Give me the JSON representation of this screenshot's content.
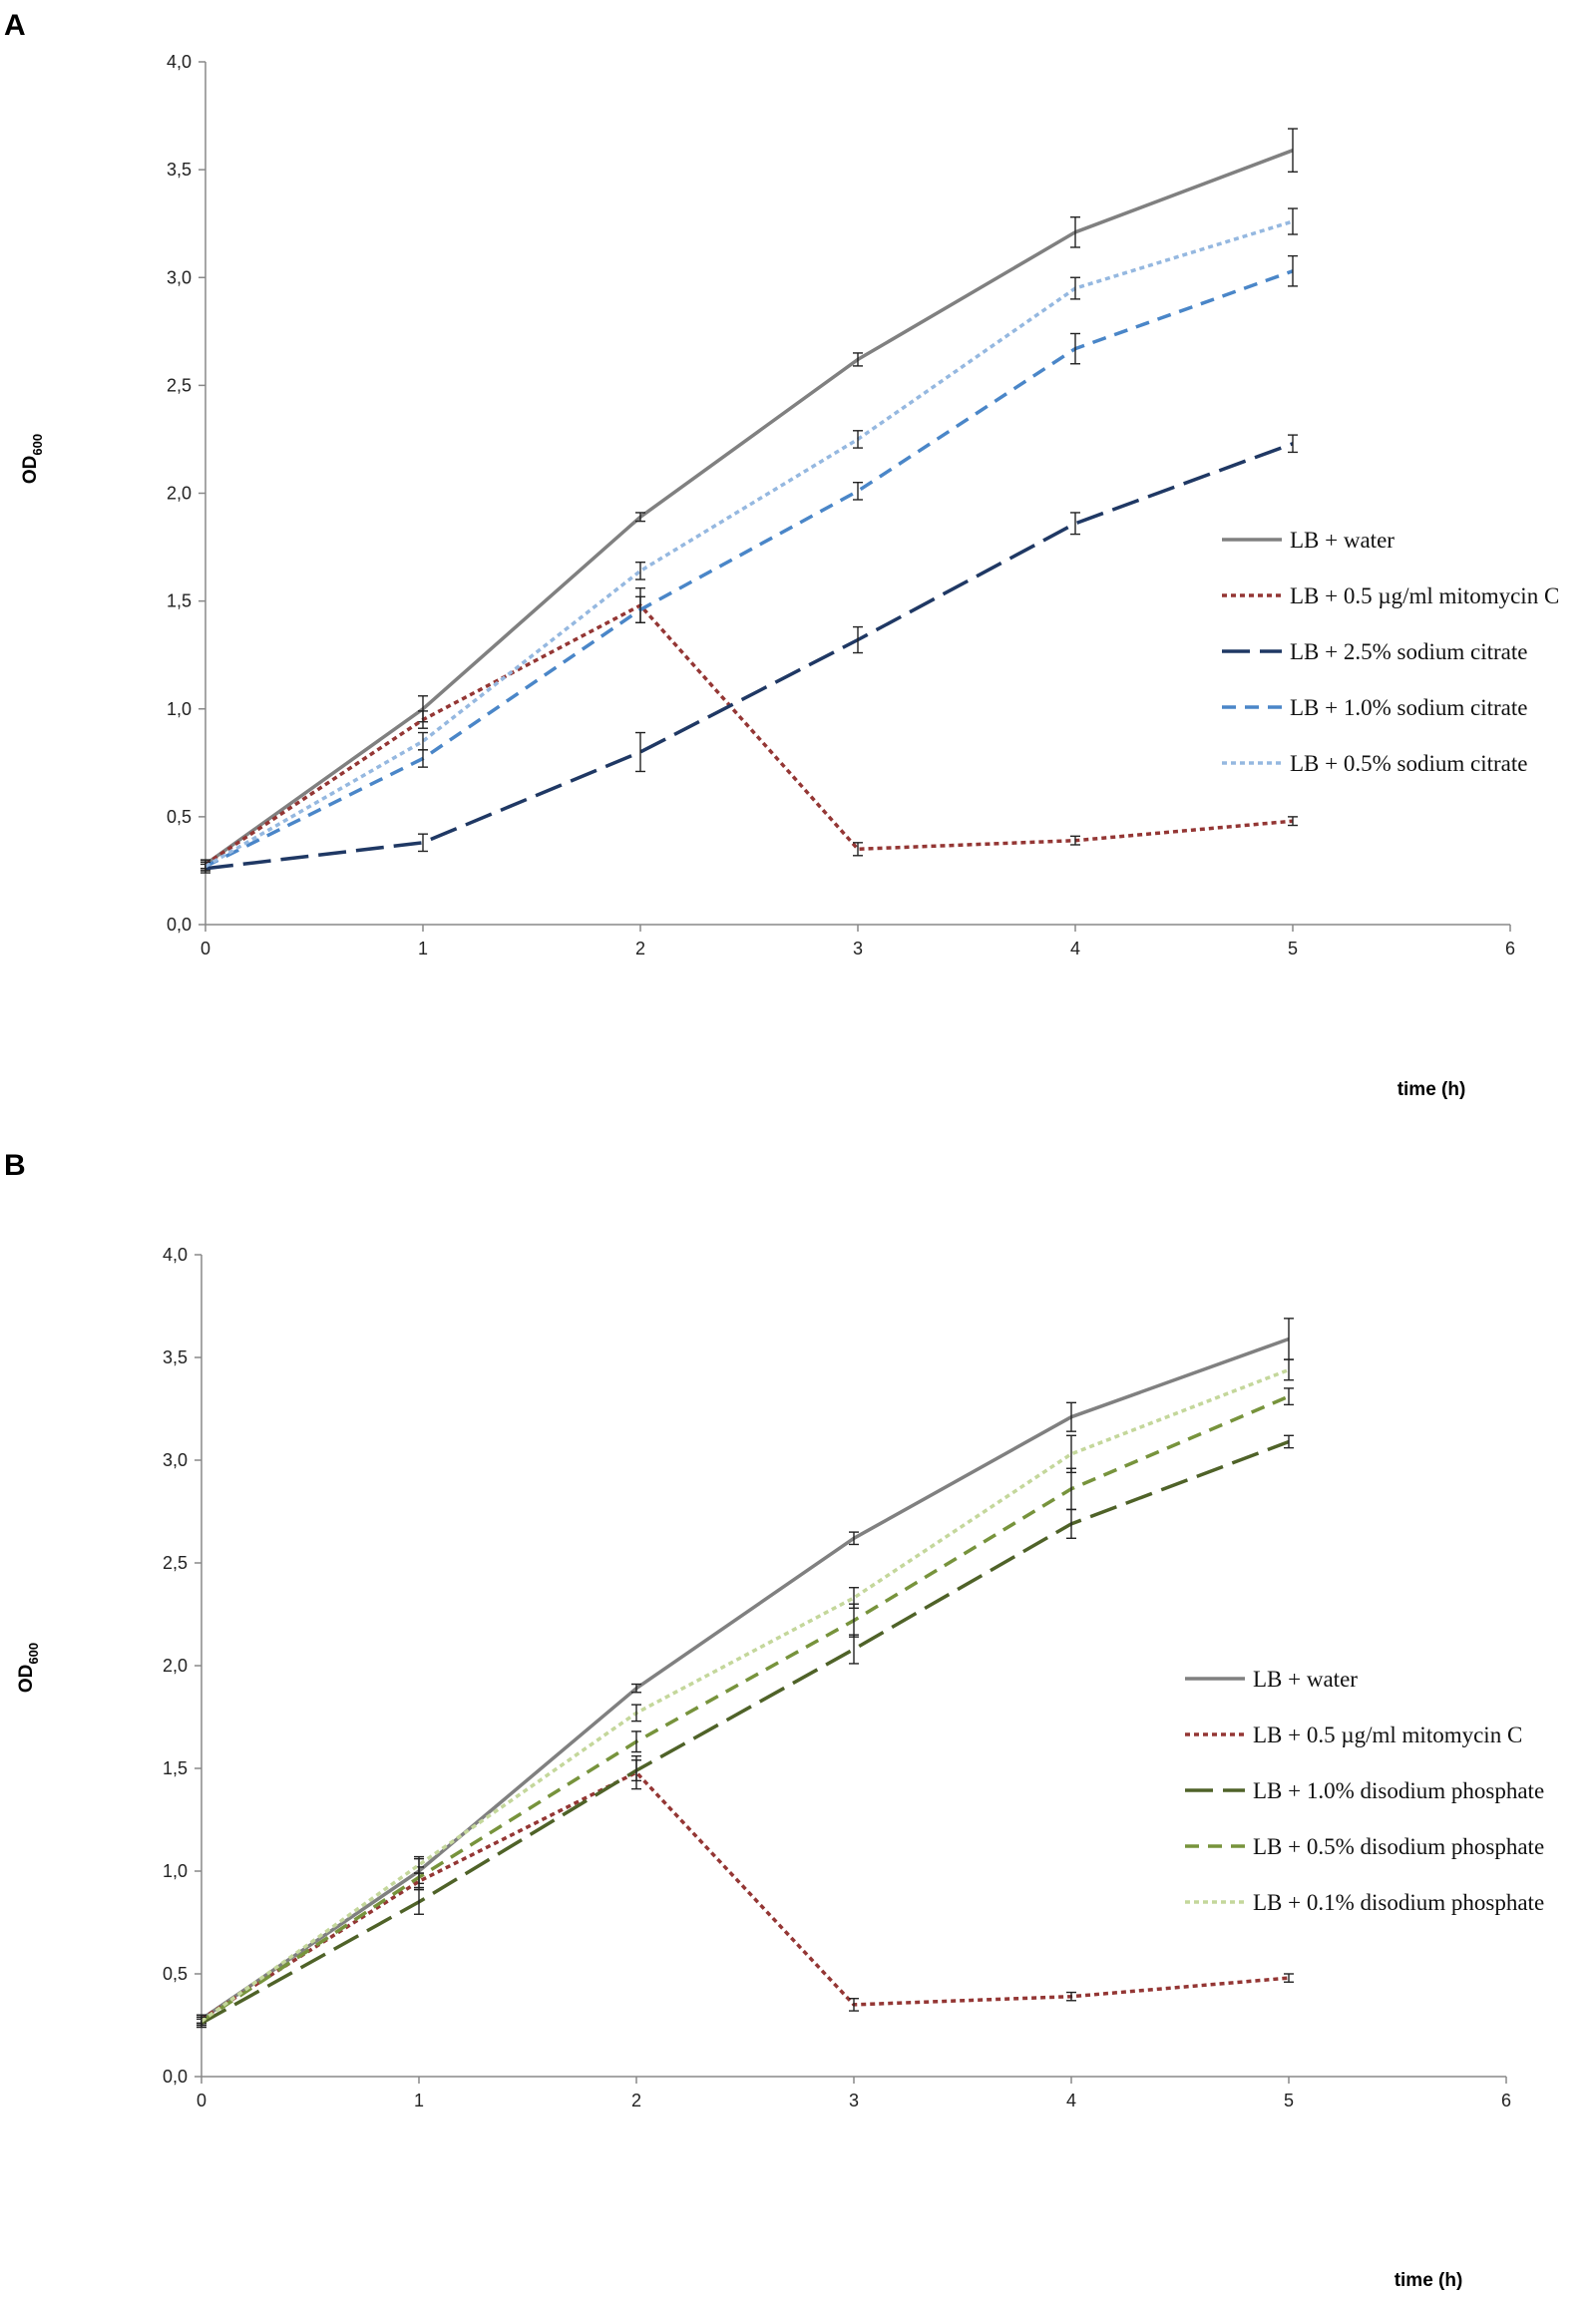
{
  "chart_data": [
    {
      "type": "line",
      "panel": "A",
      "ylabel": "OD",
      "ylabel_sub": "600",
      "xlabel": "time (h)",
      "xlim": [
        0,
        6
      ],
      "ylim": [
        0,
        4.0
      ],
      "xticks": [
        "0",
        "1",
        "2",
        "3",
        "4",
        "5",
        "6"
      ],
      "yticks": [
        "0,0",
        "0,5",
        "1,0",
        "1,5",
        "2,0",
        "2,5",
        "3,0",
        "3,5",
        "4,0"
      ],
      "legend_position": "right",
      "series": [
        {
          "name": "LB + water",
          "color": "#808080",
          "style": "solid",
          "x": [
            0,
            1,
            2,
            3,
            4,
            5
          ],
          "values": [
            0.28,
            1.0,
            1.89,
            2.62,
            3.21,
            3.59
          ],
          "errors": [
            0.02,
            0.06,
            0.02,
            0.03,
            0.07,
            0.1
          ]
        },
        {
          "name": "LB + 0.5 µg/ml mitomycin C",
          "color": "#943634",
          "style": "dot",
          "x": [
            0,
            1,
            2,
            3,
            4,
            5
          ],
          "values": [
            0.28,
            0.95,
            1.48,
            0.35,
            0.39,
            0.48
          ],
          "errors": [
            0.02,
            0.04,
            0.08,
            0.03,
            0.02,
            0.02
          ]
        },
        {
          "name": "LB + 2.5% sodium citrate",
          "color": "#1f3864",
          "style": "longdash",
          "x": [
            0,
            1,
            2,
            3,
            4,
            5
          ],
          "values": [
            0.26,
            0.38,
            0.8,
            1.32,
            1.86,
            2.23
          ],
          "errors": [
            0.02,
            0.04,
            0.09,
            0.06,
            0.05,
            0.04
          ]
        },
        {
          "name": "LB + 1.0% sodium citrate",
          "color": "#4a86c8",
          "style": "dash",
          "x": [
            0,
            1,
            2,
            3,
            4,
            5
          ],
          "values": [
            0.27,
            0.77,
            1.46,
            2.01,
            2.67,
            3.03
          ],
          "errors": [
            0.02,
            0.04,
            0.06,
            0.04,
            0.07,
            0.07
          ]
        },
        {
          "name": "LB + 0.5% sodium citrate",
          "color": "#95b8e0",
          "style": "dot",
          "x": [
            0,
            1,
            2,
            3,
            4,
            5
          ],
          "values": [
            0.27,
            0.85,
            1.64,
            2.25,
            2.95,
            3.26
          ],
          "errors": [
            0.02,
            0.04,
            0.04,
            0.04,
            0.05,
            0.06
          ]
        }
      ]
    },
    {
      "type": "line",
      "panel": "B",
      "ylabel": "OD",
      "ylabel_sub": "600",
      "xlabel": "time (h)",
      "xlim": [
        0,
        6
      ],
      "ylim": [
        0,
        4.0
      ],
      "xticks": [
        "0",
        "1",
        "2",
        "3",
        "4",
        "5",
        "6"
      ],
      "yticks": [
        "0,0",
        "0,5",
        "1,0",
        "1,5",
        "2,0",
        "2,5",
        "3,0",
        "3,5",
        "4,0"
      ],
      "legend_position": "right",
      "series": [
        {
          "name": "LB + water",
          "color": "#808080",
          "style": "solid",
          "x": [
            0,
            1,
            2,
            3,
            4,
            5
          ],
          "values": [
            0.28,
            1.0,
            1.89,
            2.62,
            3.21,
            3.59
          ],
          "errors": [
            0.02,
            0.06,
            0.02,
            0.03,
            0.07,
            0.1
          ]
        },
        {
          "name": "LB + 0.5 µg/ml mitomycin C",
          "color": "#943634",
          "style": "dot",
          "x": [
            0,
            1,
            2,
            3,
            4,
            5
          ],
          "values": [
            0.28,
            0.95,
            1.48,
            0.35,
            0.39,
            0.48
          ],
          "errors": [
            0.02,
            0.04,
            0.08,
            0.03,
            0.02,
            0.02
          ]
        },
        {
          "name": "LB + 1.0% disodium phosphate",
          "color": "#4f6228",
          "style": "longdash",
          "x": [
            0,
            1,
            2,
            3,
            4,
            5
          ],
          "values": [
            0.26,
            0.85,
            1.49,
            2.08,
            2.69,
            3.09
          ],
          "errors": [
            0.02,
            0.06,
            0.05,
            0.07,
            0.07,
            0.03
          ]
        },
        {
          "name": "LB + 0.5% disodium phosphate",
          "color": "#77933c",
          "style": "dash",
          "x": [
            0,
            1,
            2,
            3,
            4,
            5
          ],
          "values": [
            0.27,
            0.97,
            1.63,
            2.22,
            2.86,
            3.31
          ],
          "errors": [
            0.02,
            0.05,
            0.05,
            0.08,
            0.1,
            0.04
          ]
        },
        {
          "name": "LB + 0.1% disodium phosphate",
          "color": "#c4d79b",
          "style": "dot",
          "x": [
            0,
            1,
            2,
            3,
            4,
            5
          ],
          "values": [
            0.27,
            1.03,
            1.77,
            2.33,
            3.03,
            3.44
          ],
          "errors": [
            0.02,
            0.04,
            0.04,
            0.05,
            0.09,
            0.05
          ]
        }
      ]
    }
  ]
}
